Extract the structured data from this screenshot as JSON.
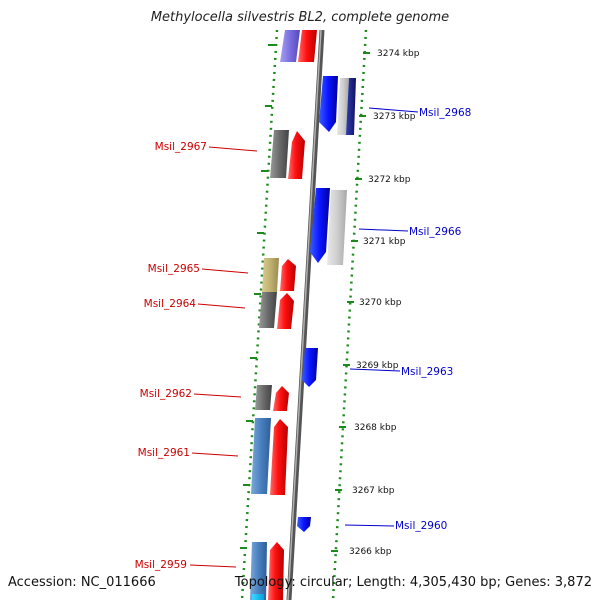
{
  "title": "Methylocella silvestris BL2, complete genome",
  "accession": "Accession: NC_011666",
  "summary": "Topology: circular; Length: 4,305,430 bp; Genes: 3,872",
  "colors": {
    "reverse_label": "#cc0000",
    "forward_label": "#0000cc",
    "dots": "#1a8a1a",
    "axis": "#888888"
  },
  "kbp_ticks": [
    "3274 kbp",
    "3273 kbp",
    "3272 kbp",
    "3271 kbp",
    "3270 kbp",
    "3269 kbp",
    "3268 kbp",
    "3267 kbp",
    "3266 kbp"
  ],
  "left_labels": [
    "Msil_2967",
    "Msil_2965",
    "Msil_2964",
    "Msil_2962",
    "Msil_2961",
    "Msil_2959"
  ],
  "right_labels": [
    "Msil_2968",
    "Msil_2966",
    "Msil_2963",
    "Msil_2960"
  ]
}
